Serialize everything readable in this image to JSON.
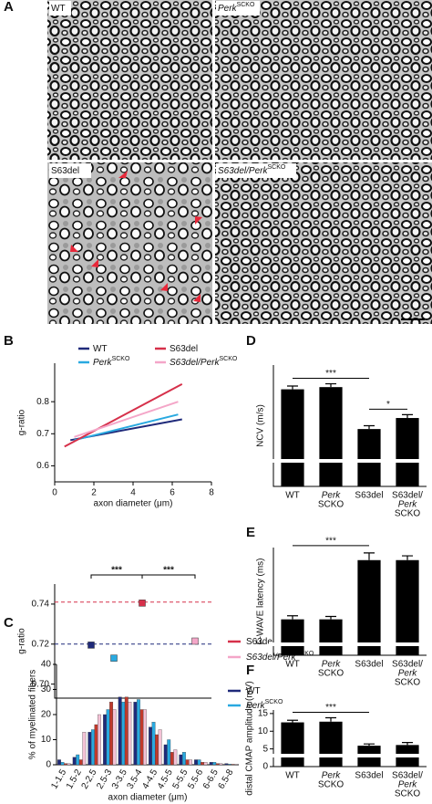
{
  "figure": {
    "panel_labels": [
      "A",
      "B",
      "C",
      "D",
      "E",
      "F"
    ],
    "micrographs": [
      {
        "name": "WT"
      },
      {
        "name": "Perk",
        "name_sup": "SCKO"
      },
      {
        "name": "S63del"
      },
      {
        "name": "S63del/Perk",
        "name_sup": "SCKO"
      }
    ]
  },
  "chart_data": [
    {
      "type": "line",
      "x_label": "axon diameter (μm)",
      "y_label": "g-ratio",
      "xlim": [
        0,
        8
      ],
      "xticks": [
        0,
        2,
        4,
        6,
        8
      ],
      "ylim": [
        0.55,
        0.92
      ],
      "yticks": [
        0.6,
        0.7,
        0.8
      ],
      "series": [
        {
          "name": "WT",
          "color": "#1f2a7a",
          "x": [
            0.8,
            6.5
          ],
          "values": [
            0.68,
            0.745
          ]
        },
        {
          "name": "Perk",
          "name_sup": "SCKO",
          "color": "#29a9e0",
          "x": [
            1,
            6.3
          ],
          "values": [
            0.68,
            0.76
          ]
        },
        {
          "name": "S63del",
          "color": "#d6304a",
          "x": [
            0.5,
            6.5
          ],
          "values": [
            0.66,
            0.855
          ]
        },
        {
          "name": "S63del/Perk",
          "name_sup": "SCKO",
          "color": "#f4a6c8",
          "x": [
            1,
            6.3
          ],
          "values": [
            0.69,
            0.8
          ]
        }
      ]
    },
    {
      "type": "dot",
      "y_label": "g-ratio",
      "ylim": [
        0.693,
        0.75
      ],
      "yticks": [
        {
          "value": 0.7,
          "label": "0.70"
        },
        0.72,
        0.74
      ],
      "reference_lines": [
        {
          "value": 0.741,
          "color": "#d6304a"
        },
        {
          "value": 0.72,
          "color": "#1f2a7a"
        }
      ],
      "annotations": [
        "***",
        "***"
      ],
      "series": [
        {
          "name": "WT",
          "color": "#1f2a7a",
          "values": [
            0.7195
          ],
          "errors": [
            0.001
          ]
        },
        {
          "name": "Perk",
          "name_sup": "SCKO",
          "color": "#29a9e0",
          "values": [
            0.713
          ],
          "errors": [
            0.0012
          ]
        },
        {
          "name": "S63del",
          "color": "#d6304a",
          "values": [
            0.7405
          ],
          "errors": [
            0.0012
          ]
        },
        {
          "name": "S63del/Perk",
          "name_sup": "SCKO",
          "color": "#f4a6c8",
          "values": [
            0.7215
          ],
          "errors": [
            0.001
          ]
        }
      ]
    },
    {
      "type": "bar",
      "x_label": "axon diameter (μm)",
      "y_label": "% of myelinated fibers",
      "categories": [
        "1-1.5",
        "1.5-2",
        "2-2.5",
        "2.5-3",
        "3-3.5",
        "3.5-4",
        "4-4.5",
        "4.5-5",
        "5-5.5",
        "5.5-6",
        "6-6.5",
        "6.5-8"
      ],
      "ylim": [
        0,
        40
      ],
      "yticks": [
        0,
        10,
        20,
        30,
        40
      ],
      "series": [
        {
          "name": "WT",
          "color": "#1f2a7a",
          "values": [
            2,
            3,
            13,
            20,
            27,
            25,
            15,
            8,
            4,
            2,
            1,
            0.5
          ]
        },
        {
          "name": "Perk",
          "name_sup": "SCKO",
          "color": "#29a9e0",
          "values": [
            1,
            4,
            14,
            22,
            25,
            26,
            17,
            10,
            5,
            2,
            1,
            0.3
          ]
        },
        {
          "name": "S63del",
          "color": "#c0392b",
          "values": [
            0.5,
            2,
            16,
            25,
            27,
            22,
            12,
            5,
            2,
            1,
            0.5,
            0.2
          ]
        },
        {
          "name": "S63del/Perk",
          "name_sup": "SCKO",
          "color": "#f4c2d6",
          "values": [
            0.5,
            13,
            20,
            22,
            25,
            22,
            14,
            6,
            2,
            1,
            0.5,
            0.2
          ]
        }
      ]
    },
    {
      "type": "bar",
      "y_label": "NCV (m/s)",
      "color": "#000000",
      "ylim": [
        0,
        55
      ],
      "categories": [
        [
          "WT"
        ],
        [
          "Perk",
          "SCKO"
        ],
        [
          "S63del"
        ],
        [
          "S63del/",
          "Perk",
          "SCKO"
        ]
      ],
      "values": [
        44,
        45,
        26,
        31
      ],
      "errors": [
        1.5,
        1.5,
        1.5,
        1.5
      ],
      "annotations": [
        "***",
        "*"
      ]
    },
    {
      "type": "bar",
      "y_label": "F-WAVE latency (ms)",
      "color": "#000000",
      "ylim": [
        4,
        7
      ],
      "categories": [
        [
          "WT"
        ],
        [
          "Perk",
          "SCKO"
        ],
        [
          "S63del"
        ],
        [
          "S63del/",
          "Perk",
          "SCKO"
        ]
      ],
      "values": [
        5.0,
        5.0,
        6.65,
        6.65
      ],
      "errors": [
        0.1,
        0.08,
        0.2,
        0.12
      ],
      "annotations": [
        "***"
      ]
    },
    {
      "type": "bar",
      "y_label": "distal CMAP amplitude (mV)",
      "color": "#000000",
      "ylim": [
        0,
        16
      ],
      "yticks": [
        0,
        5,
        10,
        15
      ],
      "categories": [
        [
          "WT"
        ],
        [
          "Perk",
          "SCKO"
        ],
        [
          "S63del"
        ],
        [
          "S63del/",
          "Perk",
          "SCKO"
        ]
      ],
      "values": [
        12.5,
        12.7,
        5.9,
        6.1
      ],
      "errors": [
        0.6,
        1.1,
        0.5,
        0.7
      ],
      "annotations": [
        "***"
      ]
    }
  ]
}
